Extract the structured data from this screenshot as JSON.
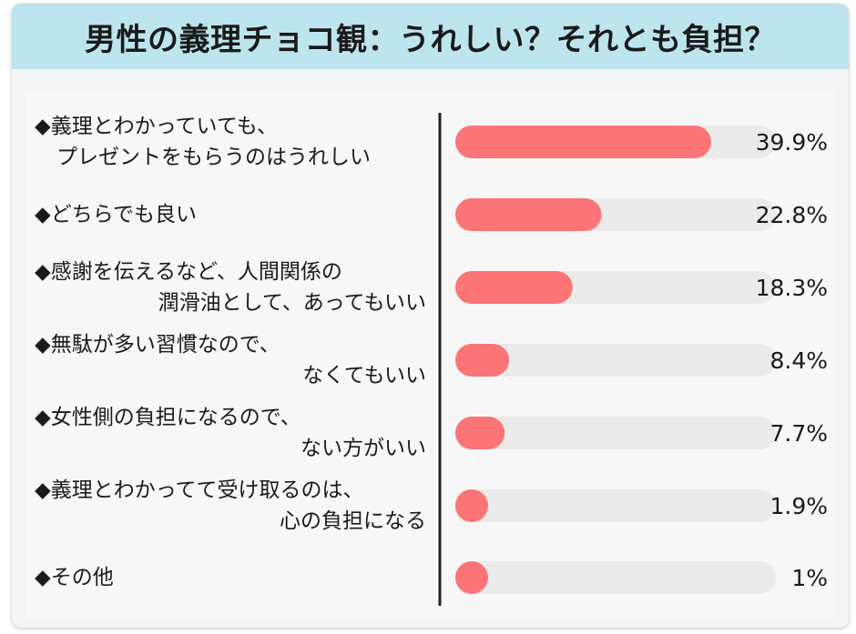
{
  "header": {
    "title": "男性の義理チョコ観：うれしい？それとも負担？"
  },
  "chart_data": {
    "type": "bar",
    "orientation": "horizontal",
    "xlim": [
      0,
      50
    ],
    "value_suffix": "%",
    "categories": [
      {
        "line1": "◆義理とわかっていても、",
        "line2": "プレゼントをもらうのはうれしい"
      },
      {
        "line1": "◆どちらでも良い",
        "line2": ""
      },
      {
        "line1": "◆感謝を伝えるなど、人間関係の",
        "line2": "潤滑油として、あってもいい"
      },
      {
        "line1": "◆無駄が多い習慣なので、",
        "line2": "なくてもいい"
      },
      {
        "line1": "◆女性側の負担になるので、",
        "line2": "ない方がいい"
      },
      {
        "line1": "◆義理とわかってて受け取るのは、",
        "line2": "心の負担になる"
      },
      {
        "line1": "◆その他",
        "line2": ""
      }
    ],
    "values": [
      39.9,
      22.8,
      18.3,
      8.4,
      7.7,
      1.9,
      1
    ],
    "value_labels": [
      "39.9%",
      "22.8%",
      "18.3%",
      "8.4%",
      "7.7%",
      "1.9%",
      "1%"
    ],
    "colors": {
      "bar": "#fb7476",
      "track": "#ebebeb",
      "axis": "#222222"
    },
    "grid": false,
    "legend": "none"
  }
}
